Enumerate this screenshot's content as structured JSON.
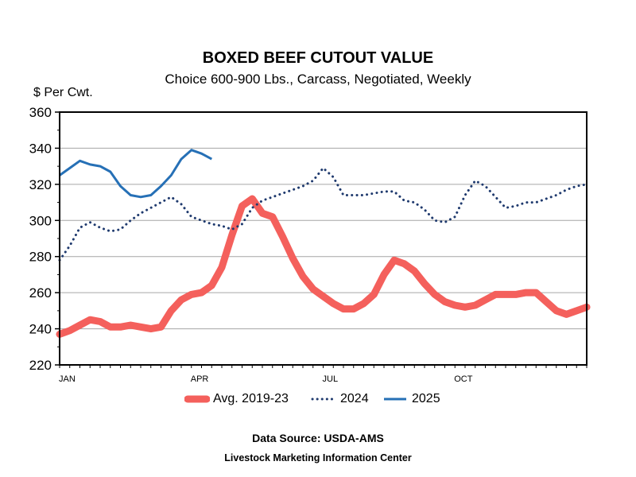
{
  "chart_data": {
    "type": "line",
    "title": "BOXED BEEF CUTOUT VALUE",
    "subtitle": "Choice 600-900 Lbs., Carcass, Negotiated, Weekly",
    "ylabel": "$ Per Cwt.",
    "xlabel": "",
    "ylim": [
      220,
      360
    ],
    "yticks": [
      220,
      240,
      260,
      280,
      300,
      320,
      340,
      360
    ],
    "x_tick_labels": [
      "JAN",
      "APR",
      "JUL",
      "OCT"
    ],
    "x_tick_weeks": [
      1,
      14,
      27,
      40
    ],
    "grid": true,
    "legend_position": "bottom",
    "series": [
      {
        "name": "Avg. 2019-23",
        "color": "#f4605c",
        "style": "thick-solid",
        "x": [
          1,
          2,
          3,
          4,
          5,
          6,
          7,
          8,
          9,
          10,
          11,
          12,
          13,
          14,
          15,
          16,
          17,
          18,
          19,
          20,
          21,
          22,
          23,
          24,
          25,
          26,
          27,
          28,
          29,
          30,
          31,
          32,
          33,
          34,
          35,
          36,
          37,
          38,
          39,
          40,
          41,
          42,
          43,
          44,
          45,
          46,
          47,
          48,
          49,
          50,
          51,
          52,
          53
        ],
        "values": [
          237,
          239,
          242,
          245,
          244,
          241,
          241,
          242,
          241,
          240,
          241,
          250,
          256,
          259,
          260,
          264,
          274,
          292,
          308,
          312,
          304,
          302,
          291,
          279,
          269,
          262,
          258,
          254,
          251,
          251,
          254,
          259,
          270,
          278,
          276,
          272,
          265,
          259,
          255,
          253,
          252,
          253,
          256,
          259,
          259,
          259,
          260,
          260,
          255,
          250,
          248,
          250,
          252
        ]
      },
      {
        "name": "2024",
        "color": "#1f3a6e",
        "style": "dotted",
        "x": [
          1,
          2,
          3,
          4,
          5,
          6,
          7,
          8,
          9,
          10,
          11,
          12,
          13,
          14,
          15,
          16,
          17,
          18,
          19,
          20,
          21,
          22,
          23,
          24,
          25,
          26,
          27,
          28,
          29,
          30,
          31,
          32,
          33,
          34,
          35,
          36,
          37,
          38,
          39,
          40,
          41,
          42,
          43,
          44,
          45,
          46,
          47,
          48,
          49,
          50,
          51,
          52,
          53
        ],
        "values": [
          278,
          286,
          296,
          299,
          296,
          294,
          295,
          300,
          304,
          307,
          310,
          313,
          309,
          302,
          300,
          298,
          297,
          295,
          298,
          307,
          311,
          313,
          315,
          317,
          319,
          322,
          329,
          324,
          314,
          314,
          314,
          315,
          316,
          316,
          311,
          310,
          306,
          300,
          299,
          302,
          314,
          322,
          319,
          313,
          307,
          308,
          310,
          310,
          312,
          314,
          317,
          319,
          320
        ]
      },
      {
        "name": "2025",
        "color": "#2670b6",
        "style": "solid",
        "x": [
          1,
          2,
          3,
          4,
          5,
          6,
          7,
          8,
          9,
          10,
          11,
          12,
          13,
          14,
          15,
          16
        ],
        "values": [
          325,
          329,
          333,
          331,
          330,
          327,
          319,
          314,
          313,
          314,
          319,
          325,
          334,
          339,
          337,
          334
        ]
      }
    ]
  },
  "source_label": "Data Source:  USDA-AMS",
  "center_label": "Livestock Marketing Information Center"
}
